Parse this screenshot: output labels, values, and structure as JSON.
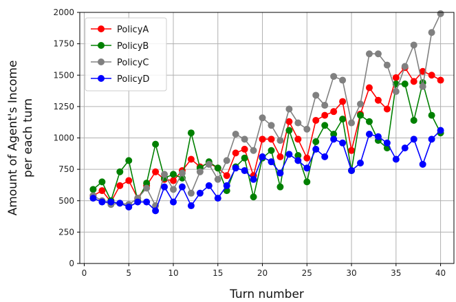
{
  "chart_data": {
    "type": "line",
    "xlabel": "Turn number",
    "ylabel_lines": [
      "Amount of Agent's Income",
      "per each turn"
    ],
    "xlim": [
      -0.5,
      41.5
    ],
    "ylim": [
      0,
      2000
    ],
    "xticks": [
      0,
      5,
      10,
      15,
      20,
      25,
      30,
      35,
      40
    ],
    "yticks": [
      0,
      250,
      500,
      750,
      1000,
      1250,
      1500,
      1750,
      2000
    ],
    "grid": true,
    "legend_position": "top-left",
    "x": [
      1,
      2,
      3,
      4,
      5,
      6,
      7,
      8,
      9,
      10,
      11,
      12,
      13,
      14,
      15,
      16,
      17,
      18,
      19,
      20,
      21,
      22,
      23,
      24,
      25,
      26,
      27,
      28,
      29,
      30,
      31,
      32,
      33,
      34,
      35,
      36,
      37,
      38,
      39,
      40
    ],
    "series": [
      {
        "name": "PolicyA",
        "color": "#ff0000",
        "values": [
          540,
          580,
          490,
          620,
          660,
          520,
          620,
          730,
          670,
          660,
          740,
          830,
          770,
          800,
          760,
          700,
          880,
          910,
          700,
          990,
          990,
          850,
          1130,
          990,
          840,
          1140,
          1180,
          1210,
          1290,
          900,
          1190,
          1400,
          1300,
          1230,
          1480,
          1560,
          1450,
          1530,
          1500,
          1460
        ]
      },
      {
        "name": "PolicyB",
        "color": "#008000",
        "values": [
          590,
          650,
          500,
          730,
          820,
          500,
          640,
          950,
          680,
          710,
          680,
          1040,
          760,
          810,
          760,
          580,
          770,
          840,
          530,
          840,
          900,
          610,
          1060,
          860,
          650,
          970,
          1100,
          1030,
          1150,
          740,
          1180,
          1130,
          980,
          920,
          1430,
          1430,
          1140,
          1440,
          1180,
          1040
        ]
      },
      {
        "name": "PolicyC",
        "color": "#808080",
        "values": [
          540,
          500,
          470,
          480,
          470,
          520,
          600,
          460,
          710,
          590,
          720,
          560,
          730,
          790,
          670,
          820,
          1030,
          990,
          900,
          1160,
          1100,
          980,
          1230,
          1120,
          1070,
          1340,
          1260,
          1490,
          1460,
          1120,
          1270,
          1670,
          1670,
          1580,
          1370,
          1570,
          1740,
          1410,
          1840,
          1990
        ]
      },
      {
        "name": "PolicyD",
        "color": "#0000ff",
        "values": [
          520,
          490,
          490,
          480,
          450,
          490,
          490,
          420,
          610,
          490,
          610,
          460,
          560,
          620,
          520,
          620,
          760,
          740,
          670,
          850,
          810,
          720,
          870,
          820,
          760,
          910,
          850,
          990,
          960,
          740,
          800,
          1030,
          1010,
          960,
          830,
          920,
          990,
          790,
          990,
          1060
        ]
      }
    ]
  }
}
